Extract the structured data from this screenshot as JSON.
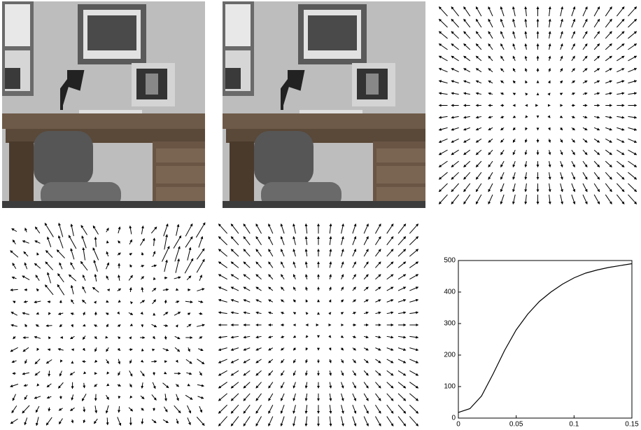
{
  "chart_data": {
    "type": "line",
    "x": [
      0,
      0.01,
      0.02,
      0.03,
      0.04,
      0.05,
      0.06,
      0.07,
      0.08,
      0.09,
      0.1,
      0.11,
      0.12,
      0.13,
      0.14,
      0.15
    ],
    "series": [
      {
        "color": "#000000",
        "values": [
          18,
          30,
          70,
          140,
          215,
          280,
          330,
          370,
          400,
          425,
          445,
          460,
          470,
          478,
          484,
          490
        ]
      }
    ],
    "xlim": [
      0,
      0.15
    ],
    "ylim": [
      0,
      500
    ],
    "xticks": [
      0,
      0.05,
      0.1,
      0.15
    ],
    "yticks": [
      0,
      100,
      200,
      300,
      400,
      500
    ]
  }
}
